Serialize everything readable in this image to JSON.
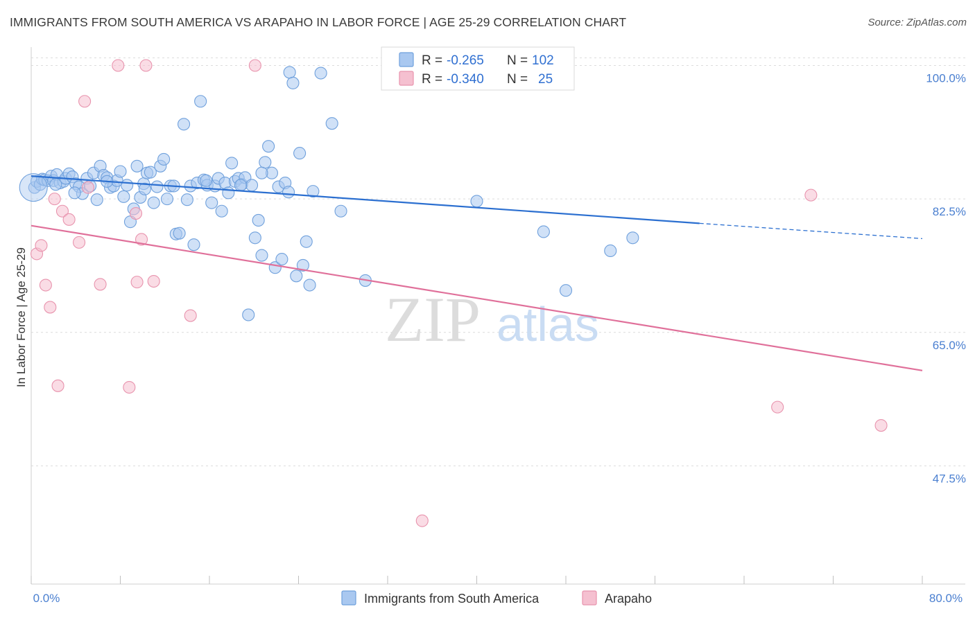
{
  "title": "IMMIGRANTS FROM SOUTH AMERICA VS ARAPAHO IN LABOR FORCE | AGE 25-29 CORRELATION CHART",
  "source": "Source: ZipAtlas.com",
  "watermark": {
    "zip": "ZIP",
    "atlas": "atlas"
  },
  "colors": {
    "blue_fill": "#a9c8f0",
    "blue_stroke": "#6fa0dc",
    "blue_line": "#2b6fd0",
    "pink_fill": "#f5c0d0",
    "pink_stroke": "#e893ad",
    "pink_line": "#e0709a",
    "grid": "#dcdcdc",
    "axis_text": "#4a7fd0"
  },
  "chart_data": {
    "type": "scatter",
    "xlabel": "",
    "ylabel": "In Labor Force | Age 25-29",
    "xlim": [
      0.0,
      80.0
    ],
    "ylim": [
      32.0,
      101.5
    ],
    "x_tick_labels": [
      {
        "value": 0.0,
        "label": "0.0%"
      },
      {
        "value": 80.0,
        "label": "80.0%"
      }
    ],
    "y_tick_labels": [
      {
        "value": 100.0,
        "label": "100.0%"
      },
      {
        "value": 82.5,
        "label": "82.5%"
      },
      {
        "value": 65.0,
        "label": "65.0%"
      },
      {
        "value": 47.5,
        "label": "47.5%"
      }
    ],
    "legend": {
      "entries": [
        {
          "r_label": "R =",
          "r_value": "-0.265",
          "n_label": "N =",
          "n_value": "102"
        },
        {
          "r_label": "R =",
          "r_value": "-0.340",
          "n_label": "N =",
          "n_value": "25"
        }
      ]
    },
    "series": [
      {
        "name": "Immigrants from South America",
        "color": "blue",
        "trend": {
          "x0": 0.0,
          "y0": 85.5,
          "x1": 60.0,
          "y1": 79.3,
          "dash_to_x": 80.0,
          "dash_to_y": 77.3
        },
        "points": [
          [
            0.3,
            84.0
          ],
          [
            0.5,
            84.8
          ],
          [
            0.8,
            84.4
          ],
          [
            1.0,
            85.1
          ],
          [
            1.2,
            85.0
          ],
          [
            1.5,
            84.9
          ],
          [
            1.8,
            85.5
          ],
          [
            2.0,
            84.9
          ],
          [
            2.3,
            85.7
          ],
          [
            2.6,
            84.6
          ],
          [
            2.9,
            84.8
          ],
          [
            3.1,
            85.2
          ],
          [
            3.4,
            85.8
          ],
          [
            3.7,
            85.4
          ],
          [
            4.0,
            84.5
          ],
          [
            4.3,
            84.1
          ],
          [
            4.6,
            83.2
          ],
          [
            5.0,
            85.2
          ],
          [
            5.3,
            84.2
          ],
          [
            5.6,
            85.9
          ],
          [
            5.9,
            82.4
          ],
          [
            6.2,
            86.8
          ],
          [
            6.5,
            85.6
          ],
          [
            6.8,
            85.3
          ],
          [
            7.1,
            84.0
          ],
          [
            7.4,
            84.2
          ],
          [
            7.7,
            84.9
          ],
          [
            8.0,
            86.1
          ],
          [
            8.3,
            82.8
          ],
          [
            8.6,
            84.3
          ],
          [
            8.9,
            79.5
          ],
          [
            9.2,
            81.2
          ],
          [
            9.5,
            86.8
          ],
          [
            9.8,
            82.7
          ],
          [
            10.1,
            84.5
          ],
          [
            10.4,
            85.9
          ],
          [
            10.7,
            86.0
          ],
          [
            11.0,
            82.0
          ],
          [
            11.3,
            84.1
          ],
          [
            11.6,
            86.8
          ],
          [
            11.9,
            87.7
          ],
          [
            12.2,
            82.5
          ],
          [
            12.5,
            84.2
          ],
          [
            12.8,
            84.2
          ],
          [
            13.0,
            77.9
          ],
          [
            13.3,
            78.0
          ],
          [
            13.7,
            92.3
          ],
          [
            14.0,
            82.4
          ],
          [
            14.3,
            84.2
          ],
          [
            14.6,
            76.5
          ],
          [
            14.9,
            84.6
          ],
          [
            15.2,
            95.3
          ],
          [
            15.5,
            85.0
          ],
          [
            15.8,
            84.3
          ],
          [
            16.2,
            82.0
          ],
          [
            16.5,
            84.2
          ],
          [
            16.8,
            85.2
          ],
          [
            17.1,
            80.9
          ],
          [
            17.4,
            84.6
          ],
          [
            17.7,
            83.3
          ],
          [
            18.0,
            87.2
          ],
          [
            18.3,
            84.8
          ],
          [
            18.6,
            85.2
          ],
          [
            18.9,
            84.4
          ],
          [
            19.2,
            85.3
          ],
          [
            19.5,
            67.3
          ],
          [
            19.8,
            84.3
          ],
          [
            20.1,
            77.4
          ],
          [
            20.4,
            79.7
          ],
          [
            20.7,
            75.1
          ],
          [
            21.0,
            87.3
          ],
          [
            21.3,
            89.4
          ],
          [
            21.6,
            85.9
          ],
          [
            21.9,
            73.5
          ],
          [
            22.2,
            84.1
          ],
          [
            22.5,
            74.6
          ],
          [
            22.8,
            84.6
          ],
          [
            23.2,
            99.1
          ],
          [
            23.5,
            97.7
          ],
          [
            23.8,
            72.4
          ],
          [
            24.1,
            88.5
          ],
          [
            24.4,
            73.8
          ],
          [
            24.7,
            76.9
          ],
          [
            25.0,
            71.2
          ],
          [
            25.3,
            83.5
          ],
          [
            26.0,
            99.0
          ],
          [
            27.0,
            92.4
          ],
          [
            27.8,
            80.9
          ],
          [
            30.0,
            71.8
          ],
          [
            40.0,
            82.2
          ],
          [
            46.0,
            78.2
          ],
          [
            48.0,
            70.5
          ],
          [
            52.0,
            75.7
          ],
          [
            54.0,
            77.4
          ],
          [
            2.2,
            84.4
          ],
          [
            3.9,
            83.3
          ],
          [
            6.8,
            84.8
          ],
          [
            10.2,
            83.8
          ],
          [
            15.7,
            84.9
          ],
          [
            18.8,
            84.3
          ],
          [
            20.7,
            85.9
          ],
          [
            23.1,
            83.4
          ]
        ]
      },
      {
        "name": "Arapaho",
        "color": "pink",
        "trend": {
          "x0": 0.0,
          "y0": 79.0,
          "x1": 80.0,
          "y1": 60.0
        },
        "points": [
          [
            0.5,
            75.3
          ],
          [
            0.9,
            76.4
          ],
          [
            1.3,
            71.2
          ],
          [
            1.7,
            68.3
          ],
          [
            2.1,
            82.5
          ],
          [
            2.4,
            58.0
          ],
          [
            2.8,
            80.9
          ],
          [
            3.4,
            79.8
          ],
          [
            4.3,
            76.8
          ],
          [
            4.8,
            95.3
          ],
          [
            5.1,
            84.0
          ],
          [
            6.2,
            71.3
          ],
          [
            7.8,
            100.0
          ],
          [
            8.8,
            57.8
          ],
          [
            9.4,
            80.6
          ],
          [
            9.9,
            77.2
          ],
          [
            10.3,
            100.0
          ],
          [
            11.0,
            71.7
          ],
          [
            14.3,
            67.2
          ],
          [
            20.1,
            100.0
          ],
          [
            35.1,
            40.3
          ],
          [
            67.0,
            55.2
          ],
          [
            70.0,
            83.0
          ],
          [
            76.3,
            52.8
          ],
          [
            9.5,
            71.6
          ]
        ]
      }
    ]
  }
}
